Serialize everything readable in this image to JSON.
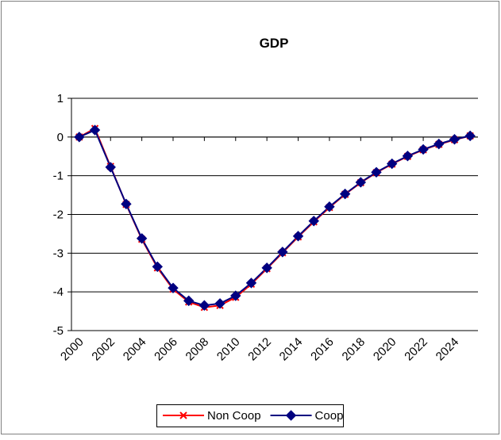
{
  "chart_data": {
    "type": "line",
    "title": "GDP",
    "x": [
      2000,
      2001,
      2002,
      2003,
      2004,
      2005,
      2006,
      2007,
      2008,
      2009,
      2010,
      2011,
      2012,
      2013,
      2014,
      2015,
      2016,
      2017,
      2018,
      2019,
      2020,
      2021,
      2022,
      2023,
      2024,
      2025
    ],
    "xlim": [
      1999.5,
      2025.5
    ],
    "xticks": [
      2000,
      2002,
      2004,
      2006,
      2008,
      2010,
      2012,
      2014,
      2016,
      2018,
      2020,
      2022,
      2024
    ],
    "ylim": [
      -5,
      1
    ],
    "yticks": [
      -5,
      -4,
      -3,
      -2,
      -1,
      0,
      1
    ],
    "grid": true,
    "legend": "bottom",
    "series": [
      {
        "name": "Non Coop",
        "color": "#ff0000",
        "marker": "x",
        "values": [
          0,
          0.22,
          -0.76,
          -1.74,
          -2.64,
          -3.38,
          -3.93,
          -4.26,
          -4.4,
          -4.35,
          -4.14,
          -3.8,
          -3.4,
          -2.99,
          -2.58,
          -2.19,
          -1.82,
          -1.48,
          -1.18,
          -0.92,
          -0.7,
          -0.5,
          -0.33,
          -0.19,
          -0.07,
          0.03
        ]
      },
      {
        "name": "Coop",
        "color": "#000080",
        "marker": "diamond",
        "values": [
          0,
          0.18,
          -0.78,
          -1.73,
          -2.62,
          -3.35,
          -3.9,
          -4.23,
          -4.35,
          -4.3,
          -4.1,
          -3.77,
          -3.38,
          -2.97,
          -2.56,
          -2.17,
          -1.8,
          -1.47,
          -1.17,
          -0.91,
          -0.69,
          -0.49,
          -0.32,
          -0.18,
          -0.06,
          0.03
        ]
      }
    ]
  }
}
